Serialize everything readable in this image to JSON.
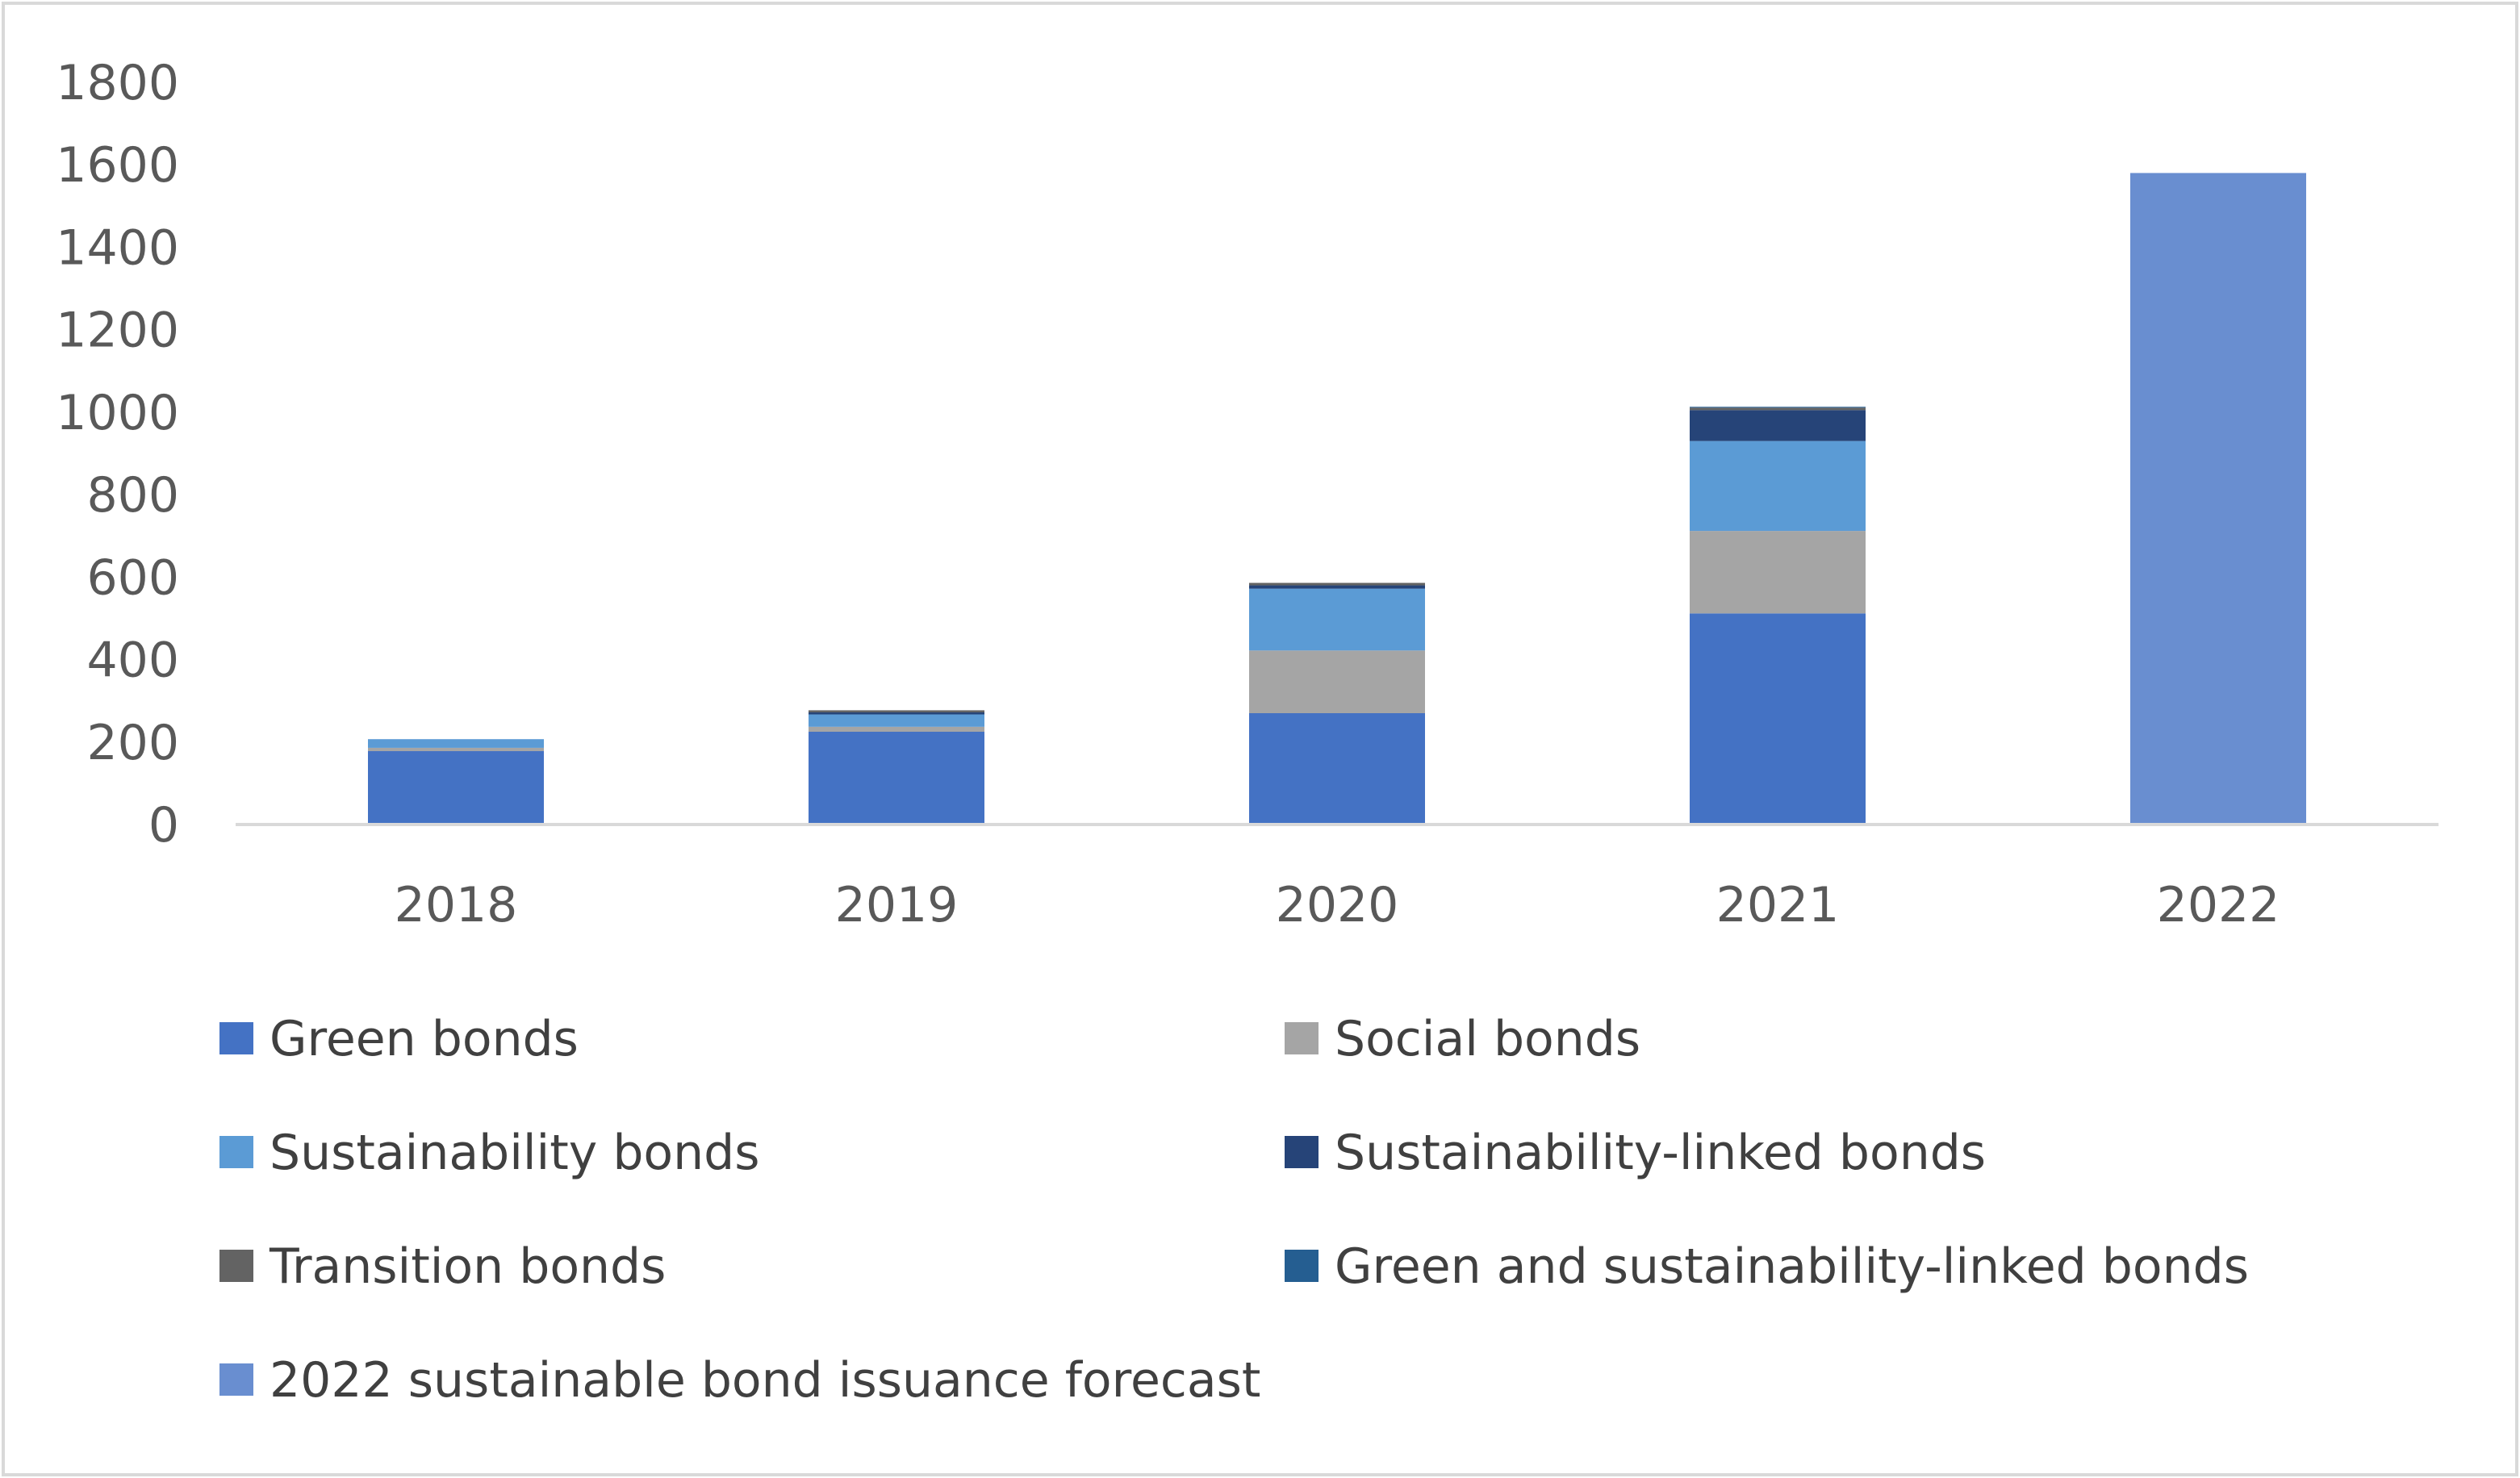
{
  "chart_data": {
    "type": "bar",
    "stacked": true,
    "title": "",
    "xlabel": "",
    "ylabel": "",
    "ylim": [
      0,
      1800
    ],
    "yticks": [
      0,
      200,
      400,
      600,
      800,
      1000,
      1200,
      1400,
      1600,
      1800
    ],
    "grid": false,
    "legend_position": "bottom",
    "categories": [
      "2018",
      "2019",
      "2020",
      "2021",
      "2022"
    ],
    "series": [
      {
        "name": "Green bonds",
        "color": "#4472C4",
        "values": [
          178,
          225,
          270,
          512,
          0
        ]
      },
      {
        "name": "Social bonds",
        "color": "#A5A5A5",
        "values": [
          8,
          12,
          152,
          200,
          0
        ]
      },
      {
        "name": "Sustainability bonds",
        "color": "#5B9BD5",
        "values": [
          21,
          30,
          150,
          218,
          0
        ]
      },
      {
        "name": "Sustainability-linked bonds",
        "color": "#264478",
        "values": [
          0,
          5,
          8,
          75,
          0
        ]
      },
      {
        "name": "Transition bonds",
        "color": "#636363",
        "values": [
          0,
          5,
          6,
          6,
          0
        ]
      },
      {
        "name": "Green and sustainability-linked bonds",
        "color": "#255E91",
        "values": [
          0,
          0,
          0,
          2,
          0
        ]
      },
      {
        "name": "2022 sustainable bond issuance forecast",
        "color": "#698ED0",
        "values": [
          0,
          0,
          0,
          0,
          1580
        ]
      }
    ]
  }
}
